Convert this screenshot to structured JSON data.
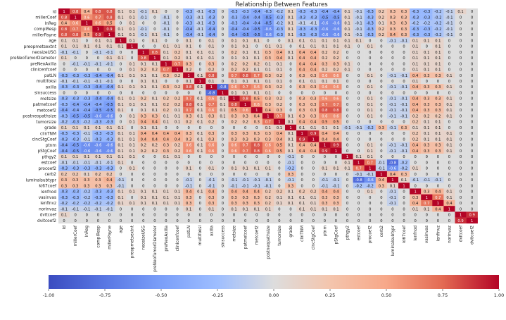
{
  "chart_data": {
    "type": "heatmap",
    "title": "Relationship Between Features",
    "labels": [
      "id",
      "millerCoef",
      "lnReg",
      "complResp",
      "millerPayne",
      "age",
      "preopmetsextnt",
      "neosizeUSG",
      "preNeoTumorDiameter",
      "preNeoAxilla",
      "clinicenfcoef",
      "patLN",
      "multifoksl",
      "axilla",
      "slnsuccess",
      "metsize",
      "patmetcoef",
      "metcoef2",
      "postneopathsize",
      "tumorsize",
      "grade",
      "clinTNM",
      "clncStgCoef",
      "ptnm",
      "pStgCoef",
      "pthgy2",
      "estcoef",
      "procoef2",
      "cerb2",
      "luminalsubtypr",
      "ki67coef",
      "lenfnod",
      "vasinvas",
      "lenfinvz",
      "norinvaz",
      "dvitcoef",
      "dvitcoef2"
    ],
    "colorbar": {
      "min": -1.0,
      "max": 1.0,
      "ticks": [
        "-1.00",
        "-0.75",
        "-0.50",
        "-0.25",
        "0.00",
        "0.25",
        "0.50",
        "0.75",
        "1.00"
      ]
    },
    "colors": {
      "negative": "#3b4cc0",
      "neutral": "#dddddd",
      "positive": "#b40426"
    },
    "annotated": true,
    "grid": false,
    "values": [
      [
        1,
        0.8,
        0.4,
        0.8,
        0.8,
        0.1,
        0.1,
        -0.1,
        0.1,
        0.0,
        0.0,
        -0.3,
        -0.1,
        -0.3,
        0.0,
        -0.3,
        -0.3,
        -0.4,
        -0.3,
        -0.2,
        0.1,
        -0.3,
        -0.3,
        -0.4,
        -0.4,
        0.1,
        -0.1,
        -0.3,
        0.2,
        0.3,
        0.3,
        -0.3,
        -0.3,
        -0.2,
        -0.1,
        0.1,
        0.0
      ],
      [
        0.8,
        1,
        0.6,
        0.7,
        0.8,
        0.1,
        0.1,
        -0.1,
        0.0,
        -0.1,
        0.0,
        -0.3,
        -0.1,
        -0.3,
        0.0,
        -0.3,
        -0.4,
        -0.4,
        -0.5,
        -0.3,
        0.1,
        -0.3,
        -0.3,
        -0.5,
        -0.5,
        0.1,
        -0.1,
        -0.3,
        0.2,
        0.3,
        0.3,
        -0.3,
        -0.3,
        -0.2,
        -0.1,
        0.0,
        0.0
      ],
      [
        0.4,
        0.6,
        1,
        0.6,
        0.5,
        0.0,
        0.1,
        0.0,
        0.0,
        -0.1,
        0.0,
        -0.3,
        -0.1,
        -0.3,
        0.0,
        -0.3,
        -0.4,
        -0.4,
        -0.5,
        -0.2,
        0.1,
        -0.1,
        -0.1,
        -0.6,
        -0.6,
        0.1,
        -0.1,
        -0.3,
        0.1,
        0.3,
        0.3,
        -0.2,
        -0.2,
        -0.2,
        -0.1,
        0.0,
        0.0
      ],
      [
        0.8,
        0.7,
        0.6,
        1,
        0.9,
        0.1,
        0.1,
        -0.1,
        0.0,
        -0.1,
        0.0,
        -0.4,
        -0.1,
        -0.4,
        0.0,
        -0.4,
        -0.4,
        -0.5,
        -0.6,
        -0.3,
        0.1,
        -0.3,
        -0.3,
        -0.6,
        -0.6,
        0.1,
        -0.1,
        -0.3,
        0.2,
        0.3,
        0.3,
        -0.3,
        -0.3,
        -0.2,
        -0.1,
        0.0,
        0.0
      ],
      [
        0.8,
        0.8,
        0.5,
        0.9,
        1,
        0.1,
        0.1,
        -0.1,
        0.1,
        -0.1,
        0.0,
        -0.4,
        -0.1,
        -0.4,
        0.0,
        -0.4,
        -0.5,
        -0.5,
        -0.6,
        -0.3,
        0.1,
        -0.3,
        -0.3,
        -0.6,
        -0.6,
        0.1,
        -0.1,
        -0.3,
        0.2,
        0.4,
        0.3,
        -0.3,
        -0.3,
        -0.2,
        -0.1,
        0.0,
        0.0
      ],
      [
        0.1,
        0.1,
        0.0,
        0.1,
        0.1,
        1,
        0.1,
        0.0,
        0.1,
        0.0,
        0.0,
        0.1,
        0.0,
        0.1,
        0.0,
        0.1,
        0.1,
        0.1,
        0.0,
        0.0,
        0.1,
        0.1,
        0.1,
        0.1,
        0.1,
        0.1,
        0.1,
        0.0,
        0.0,
        -0.1,
        -0.1,
        0.1,
        0.1,
        0.1,
        0.0,
        0.0,
        0.0
      ],
      [
        0.1,
        0.1,
        0.1,
        0.1,
        0.1,
        0.1,
        1,
        0.0,
        0.0,
        0.1,
        0.1,
        0.1,
        0.0,
        0.1,
        0.0,
        0.1,
        0.1,
        0.0,
        0.1,
        0.1,
        0.0,
        0.1,
        0.1,
        0.1,
        0.1,
        0.1,
        0.0,
        0.1,
        0.0,
        0.0,
        0.0,
        0.1,
        0.0,
        0.1,
        0.0,
        0.0,
        0.0
      ],
      [
        -0.1,
        -0.1,
        0.0,
        -0.1,
        -0.1,
        0.0,
        0.0,
        1,
        0.8,
        0.1,
        0.2,
        0.1,
        0.1,
        0.1,
        0.0,
        0.2,
        0.1,
        0.1,
        0.3,
        0.4,
        0.1,
        0.4,
        0.4,
        0.2,
        0.2,
        0.0,
        0.0,
        0.0,
        0.0,
        0.0,
        0.0,
        0.1,
        0.1,
        0.1,
        0.0,
        0.0,
        0.0
      ],
      [
        0.1,
        0.0,
        0.0,
        0.0,
        0.1,
        0.1,
        0.0,
        0.8,
        1,
        0.1,
        0.2,
        0.1,
        0.1,
        0.1,
        0.0,
        0.1,
        0.1,
        0.1,
        0.3,
        0.4,
        0.1,
        0.4,
        0.4,
        0.2,
        0.2,
        0.0,
        0.0,
        0.0,
        0.0,
        0.0,
        0.0,
        0.1,
        0.1,
        0.1,
        0.0,
        0.0,
        0.0
      ],
      [
        0.0,
        -0.1,
        -0.1,
        -0.1,
        -0.1,
        0.0,
        0.1,
        0.1,
        0.1,
        1,
        0.7,
        0.3,
        0.0,
        0.3,
        0.0,
        0.2,
        0.2,
        0.2,
        0.1,
        0.1,
        0.0,
        0.4,
        0.4,
        0.3,
        0.3,
        0.1,
        0.0,
        0.0,
        0.0,
        0.0,
        0.0,
        0.1,
        0.1,
        0.1,
        0.0,
        0.0,
        0.0
      ],
      [
        0.0,
        0.0,
        0.0,
        0.0,
        0.0,
        0.0,
        0.1,
        0.2,
        0.2,
        0.7,
        1,
        0.2,
        0.0,
        0.2,
        0.0,
        0.2,
        0.2,
        0.1,
        0.1,
        0.1,
        0.0,
        0.4,
        0.4,
        0.2,
        0.2,
        0.1,
        0.0,
        0.0,
        0.0,
        0.0,
        0.0,
        0.1,
        0.1,
        0.1,
        0.0,
        0.0,
        0.0
      ],
      [
        -0.3,
        -0.3,
        -0.3,
        -0.4,
        -0.4,
        0.1,
        0.1,
        0.1,
        0.1,
        0.3,
        0.2,
        1,
        0.1,
        0.8,
        0.0,
        0.7,
        0.8,
        0.7,
        0.3,
        0.2,
        0.0,
        0.3,
        0.3,
        0.6,
        0.6,
        0.0,
        0.0,
        0.1,
        0.0,
        -0.1,
        -0.1,
        0.4,
        0.3,
        0.3,
        0.1,
        0.0,
        0.0
      ],
      [
        -0.1,
        -0.1,
        -0.1,
        -0.1,
        -0.1,
        0.0,
        0.0,
        0.1,
        0.1,
        0.0,
        0.0,
        0.1,
        1,
        0.1,
        0.0,
        0.1,
        0.1,
        0.1,
        0.1,
        0.1,
        0.0,
        0.1,
        0.1,
        0.1,
        0.1,
        0.0,
        0.0,
        0.0,
        0.0,
        0.0,
        0.0,
        0.1,
        0.0,
        0.0,
        0.0,
        0.0,
        0.0
      ],
      [
        -0.3,
        -0.3,
        -0.3,
        -0.4,
        -0.4,
        0.1,
        0.1,
        0.1,
        0.1,
        0.3,
        0.2,
        0.8,
        0.1,
        1,
        -0.8,
        0.6,
        0.7,
        0.6,
        0.3,
        0.2,
        0.0,
        0.3,
        0.3,
        0.6,
        0.6,
        0.0,
        0.0,
        0.1,
        0.0,
        -0.1,
        -0.1,
        0.4,
        0.3,
        0.3,
        0.1,
        0.0,
        0.0
      ],
      [
        0.0,
        0.0,
        0.0,
        0.0,
        0.0,
        0.0,
        0.0,
        0.0,
        0.0,
        0.0,
        0.0,
        0.0,
        0.0,
        -0.8,
        1,
        0.1,
        0.1,
        0.1,
        0.1,
        0.0,
        0.0,
        0.0,
        0.0,
        0.0,
        0.0,
        0.0,
        0.0,
        0.0,
        0.0,
        0.0,
        0.0,
        0.0,
        0.0,
        0.0,
        0.0,
        0.0,
        0.0
      ],
      [
        -0.3,
        -0.3,
        -0.3,
        -0.4,
        -0.4,
        0.1,
        0.1,
        0.2,
        0.1,
        0.2,
        0.2,
        0.7,
        0.1,
        0.6,
        0.1,
        1,
        0.8,
        0.5,
        0.3,
        0.2,
        0.0,
        0.3,
        0.3,
        0.6,
        0.6,
        0.0,
        0.0,
        0.1,
        0.0,
        -0.1,
        -0.1,
        0.4,
        0.3,
        0.3,
        0.1,
        0.0,
        0.0
      ],
      [
        -0.3,
        -0.4,
        -0.4,
        -0.4,
        -0.5,
        0.1,
        0.1,
        0.1,
        0.1,
        0.2,
        0.2,
        0.8,
        0.1,
        0.7,
        0.1,
        0.8,
        1,
        0.6,
        0.3,
        0.2,
        0.0,
        0.3,
        0.3,
        0.7,
        0.7,
        0.0,
        0.0,
        0.1,
        0.0,
        -0.1,
        -0.1,
        0.4,
        0.3,
        0.3,
        0.1,
        0.0,
        0.0
      ],
      [
        -0.4,
        -0.4,
        -0.4,
        -0.5,
        -0.5,
        0.1,
        0.0,
        0.1,
        0.1,
        0.2,
        0.1,
        0.7,
        0.1,
        0.6,
        0.1,
        0.5,
        0.6,
        1,
        0.4,
        0.3,
        0.0,
        0.3,
        0.3,
        0.8,
        0.8,
        0.0,
        0.0,
        0.1,
        0.0,
        -0.1,
        -0.1,
        0.4,
        0.3,
        0.3,
        0.1,
        0.0,
        0.0
      ],
      [
        -0.3,
        -0.5,
        -0.5,
        -0.6,
        -0.6,
        0.0,
        0.1,
        0.3,
        0.3,
        0.1,
        0.1,
        0.3,
        0.1,
        0.3,
        0.1,
        0.3,
        0.3,
        0.4,
        1,
        0.7,
        0.1,
        0.3,
        0.3,
        0.6,
        0.6,
        0.0,
        0.0,
        0.1,
        0.0,
        -0.1,
        -0.1,
        0.2,
        0.2,
        0.2,
        0.1,
        0.0,
        0.0
      ],
      [
        -0.2,
        -0.3,
        -0.2,
        -0.3,
        -0.3,
        0.0,
        0.1,
        0.4,
        0.4,
        0.1,
        0.1,
        0.2,
        0.1,
        0.2,
        0.0,
        0.2,
        0.2,
        0.3,
        0.7,
        1,
        0.1,
        0.4,
        0.4,
        0.5,
        0.5,
        0.0,
        0.0,
        0.0,
        0.0,
        0.0,
        0.0,
        0.2,
        0.1,
        0.1,
        0.0,
        0.0,
        0.0
      ],
      [
        0.1,
        0.1,
        0.1,
        0.1,
        0.1,
        0.1,
        0.0,
        0.1,
        0.1,
        0.0,
        0.0,
        0.0,
        0.0,
        0.0,
        0.0,
        0.0,
        0.0,
        0.0,
        0.1,
        0.1,
        1,
        0.1,
        0.1,
        0.1,
        0.1,
        -0.1,
        -0.1,
        -0.2,
        0.3,
        -0.1,
        0.3,
        0.1,
        0.1,
        0.1,
        0.0,
        0.0,
        0.0
      ],
      [
        -0.3,
        -0.3,
        -0.1,
        -0.3,
        -0.3,
        0.1,
        0.1,
        0.4,
        0.4,
        0.4,
        0.4,
        0.3,
        0.1,
        0.3,
        0.0,
        0.3,
        0.3,
        0.3,
        0.3,
        0.4,
        0.1,
        1,
        0.9,
        0.4,
        0.4,
        0.0,
        0.0,
        0.0,
        0.0,
        0.0,
        0.0,
        0.2,
        0.1,
        0.1,
        0.1,
        0.0,
        0.0
      ],
      [
        -0.3,
        -0.3,
        -0.1,
        -0.3,
        -0.3,
        0.1,
        0.1,
        0.4,
        0.4,
        0.4,
        0.4,
        0.3,
        0.1,
        0.3,
        0.0,
        0.3,
        0.3,
        0.3,
        0.3,
        0.4,
        0.1,
        0.9,
        1,
        0.4,
        0.4,
        0.0,
        0.0,
        0.0,
        0.0,
        0.0,
        0.0,
        0.2,
        0.1,
        0.1,
        0.1,
        0.0,
        0.0
      ],
      [
        -0.4,
        -0.5,
        -0.6,
        -0.6,
        -0.6,
        0.1,
        0.1,
        0.2,
        0.2,
        0.3,
        0.2,
        0.6,
        0.1,
        0.6,
        0.0,
        0.6,
        0.7,
        0.8,
        0.6,
        0.5,
        0.1,
        0.4,
        0.4,
        1,
        0.9,
        0.0,
        0.0,
        0.1,
        0.0,
        -0.1,
        -0.1,
        0.4,
        0.3,
        0.3,
        0.1,
        0.0,
        0.0
      ],
      [
        -0.4,
        -0.5,
        -0.6,
        -0.6,
        -0.6,
        0.1,
        0.1,
        0.2,
        0.2,
        0.3,
        0.2,
        0.6,
        0.1,
        0.6,
        0.0,
        0.6,
        0.7,
        0.8,
        0.6,
        0.5,
        0.1,
        0.4,
        0.4,
        0.9,
        1,
        0.0,
        0.0,
        0.1,
        0.0,
        -0.1,
        -0.1,
        0.4,
        0.3,
        0.3,
        0.1,
        0.0,
        0.0
      ],
      [
        0.1,
        0.1,
        0.1,
        0.1,
        0.1,
        0.1,
        0.1,
        0.0,
        0.0,
        0.1,
        0.1,
        0.0,
        0.0,
        0.0,
        0.0,
        0.0,
        0.0,
        0.0,
        0.0,
        0.0,
        -0.1,
        0.0,
        0.0,
        0.0,
        0.0,
        1,
        0.1,
        0.1,
        0.0,
        0.0,
        0.0,
        0.0,
        0.0,
        0.0,
        0.0,
        0.0,
        0.0
      ],
      [
        -0.1,
        -0.1,
        -0.1,
        -0.1,
        -0.1,
        0.1,
        0.0,
        0.0,
        0.0,
        0.0,
        0.0,
        0.0,
        0.0,
        0.0,
        0.0,
        0.0,
        0.0,
        0.0,
        0.0,
        0.0,
        -0.1,
        0.0,
        0.0,
        0.0,
        0.0,
        0.1,
        1,
        0.7,
        -0.1,
        -0.8,
        -0.2,
        0.0,
        0.0,
        0.0,
        0.0,
        0.0,
        0.0
      ],
      [
        -0.3,
        -0.3,
        -0.3,
        -0.3,
        -0.3,
        0.0,
        0.1,
        0.0,
        0.0,
        0.0,
        0.0,
        0.1,
        0.0,
        0.1,
        0.0,
        0.1,
        0.1,
        0.1,
        0.1,
        0.0,
        -0.2,
        0.0,
        0.0,
        0.1,
        0.1,
        0.1,
        0.7,
        1,
        -0.1,
        -0.6,
        -0.2,
        0.1,
        0.0,
        0.0,
        0.0,
        0.0,
        0.0
      ],
      [
        0.2,
        0.2,
        0.1,
        0.2,
        0.2,
        0.0,
        0.0,
        0.0,
        0.0,
        0.0,
        0.0,
        0.0,
        0.0,
        0.0,
        0.0,
        0.0,
        0.0,
        0.0,
        0.0,
        0.0,
        0.3,
        0.0,
        0.0,
        0.0,
        0.0,
        0.0,
        -0.1,
        -0.1,
        1,
        0.4,
        0.3,
        0.0,
        0.0,
        0.0,
        0.0,
        0.0,
        0.0
      ],
      [
        0.3,
        0.3,
        0.3,
        0.3,
        0.4,
        -0.1,
        0.0,
        0.0,
        0.0,
        0.0,
        0.0,
        -0.1,
        0.0,
        -0.1,
        0.0,
        -0.1,
        -0.1,
        -0.1,
        -0.1,
        0.0,
        -0.1,
        0.0,
        0.0,
        -0.1,
        -0.1,
        0.0,
        -0.8,
        -0.6,
        0.4,
        1,
        0.1,
        -0.1,
        -0.1,
        -0.1,
        0.0,
        0.0,
        0.0
      ],
      [
        0.3,
        0.3,
        0.3,
        0.3,
        0.3,
        -0.1,
        0.0,
        0.0,
        0.0,
        0.0,
        0.0,
        -0.1,
        0.0,
        -0.1,
        0.0,
        -0.1,
        -0.1,
        -0.1,
        -0.1,
        0.0,
        0.3,
        0.0,
        0.0,
        -0.1,
        -0.1,
        0.0,
        -0.2,
        -0.2,
        0.3,
        0.1,
        1,
        0.0,
        0.0,
        0.0,
        0.0,
        0.0,
        0.0
      ],
      [
        -0.3,
        -0.3,
        -0.2,
        -0.3,
        -0.3,
        0.1,
        0.1,
        0.1,
        0.1,
        0.1,
        0.1,
        0.4,
        0.1,
        0.4,
        0.0,
        0.4,
        0.4,
        0.4,
        0.2,
        0.2,
        0.1,
        0.2,
        0.2,
        0.4,
        0.4,
        0.0,
        0.0,
        0.1,
        0.0,
        -0.1,
        0.0,
        1,
        0.3,
        0.4,
        0.1,
        0.0,
        0.0
      ],
      [
        -0.3,
        -0.3,
        -0.2,
        -0.3,
        -0.3,
        0.1,
        0.0,
        0.1,
        0.1,
        0.1,
        0.1,
        0.3,
        0.0,
        0.3,
        0.0,
        0.3,
        0.3,
        0.3,
        0.2,
        0.1,
        0.1,
        0.1,
        0.1,
        0.3,
        0.3,
        0.0,
        0.0,
        0.0,
        0.0,
        -0.1,
        0.0,
        0.3,
        1,
        0.7,
        0.1,
        0.0,
        0.0
      ],
      [
        -0.2,
        -0.2,
        -0.2,
        -0.2,
        -0.2,
        0.1,
        0.1,
        0.1,
        0.1,
        0.1,
        0.1,
        0.3,
        0.0,
        0.3,
        0.0,
        0.3,
        0.3,
        0.3,
        0.2,
        0.1,
        0.1,
        0.1,
        0.1,
        0.3,
        0.3,
        0.0,
        0.0,
        0.0,
        0.0,
        -0.1,
        0.0,
        0.4,
        0.7,
        1,
        0.4,
        0.0,
        0.0
      ],
      [
        -0.1,
        -0.1,
        -0.1,
        -0.1,
        -0.1,
        0.0,
        0.0,
        0.0,
        0.0,
        0.0,
        0.0,
        0.1,
        0.0,
        0.1,
        0.0,
        0.1,
        0.1,
        0.1,
        0.1,
        0.0,
        0.0,
        0.1,
        0.1,
        0.1,
        0.1,
        0.0,
        0.0,
        0.0,
        0.0,
        0.0,
        0.0,
        0.1,
        0.1,
        0.4,
        1,
        0.0,
        0.0
      ],
      [
        0.1,
        0.0,
        0.0,
        0.0,
        0.0,
        0.0,
        0.0,
        0.0,
        0.0,
        0.0,
        0.0,
        0.0,
        0.0,
        0.0,
        0.0,
        0.0,
        0.0,
        0.0,
        0.0,
        0.0,
        0.0,
        0.0,
        0.0,
        0.0,
        0.0,
        0.0,
        0.0,
        0.0,
        0.0,
        0.0,
        0.0,
        0.0,
        0.0,
        0.0,
        0.0,
        1,
        0.9
      ],
      [
        0.0,
        0.0,
        0.0,
        0.0,
        0.0,
        0.0,
        0.0,
        0.0,
        0.0,
        0.0,
        0.0,
        0.0,
        0.0,
        0.0,
        0.0,
        0.0,
        0.0,
        0.0,
        0.0,
        0.0,
        0.0,
        0.0,
        0.0,
        0.0,
        0.0,
        0.0,
        0.0,
        0.0,
        0.0,
        0.0,
        0.0,
        0.0,
        0.0,
        0.0,
        0.0,
        0.9,
        1
      ]
    ]
  }
}
